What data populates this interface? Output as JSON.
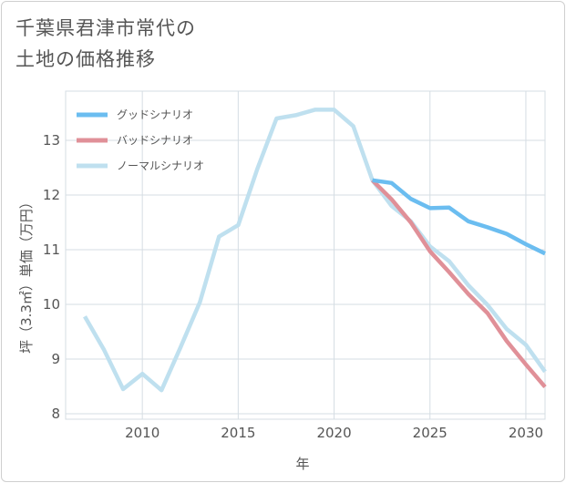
{
  "title_lines": [
    "千葉県君津市常代の",
    "土地の価格推移"
  ],
  "chart_data": {
    "type": "line",
    "title": "千葉県君津市常代の土地の価格推移",
    "xlabel": "年",
    "ylabel": "坪（3.3㎡）単価（万円）",
    "xlim": [
      2006,
      2031
    ],
    "ylim": [
      7.9,
      13.9
    ],
    "xticks": [
      2010,
      2015,
      2020,
      2025,
      2030
    ],
    "yticks": [
      8,
      9,
      10,
      11,
      12,
      13
    ],
    "legend_position": "top-left",
    "series": [
      {
        "name": "グッドシナリオ",
        "color": "#6bbdf0",
        "x": [
          2022,
          2023,
          2024,
          2025,
          2026,
          2027,
          2028,
          2029,
          2030,
          2031
        ],
        "values": [
          12.27,
          12.22,
          11.93,
          11.76,
          11.77,
          11.52,
          11.41,
          11.29,
          11.1,
          10.93
        ]
      },
      {
        "name": "バッドシナリオ",
        "color": "#e09098",
        "x": [
          2022,
          2023,
          2024,
          2025,
          2026,
          2027,
          2028,
          2029,
          2030,
          2031
        ],
        "values": [
          12.27,
          11.92,
          11.5,
          10.97,
          10.59,
          10.19,
          9.84,
          9.33,
          8.9,
          8.49
        ]
      },
      {
        "name": "ノーマルシナリオ",
        "color": "#bfe0ef",
        "x": [
          2007,
          2008,
          2009,
          2010,
          2011,
          2012,
          2013,
          2014,
          2015,
          2016,
          2017,
          2018,
          2019,
          2020,
          2021,
          2022,
          2023,
          2024,
          2025,
          2026,
          2027,
          2028,
          2029,
          2030,
          2031
        ],
        "values": [
          9.78,
          9.17,
          8.45,
          8.73,
          8.43,
          9.22,
          10.04,
          11.24,
          11.45,
          12.48,
          13.4,
          13.46,
          13.56,
          13.56,
          13.26,
          12.27,
          11.8,
          11.52,
          11.06,
          10.79,
          10.35,
          9.99,
          9.55,
          9.26,
          8.77
        ]
      }
    ]
  }
}
